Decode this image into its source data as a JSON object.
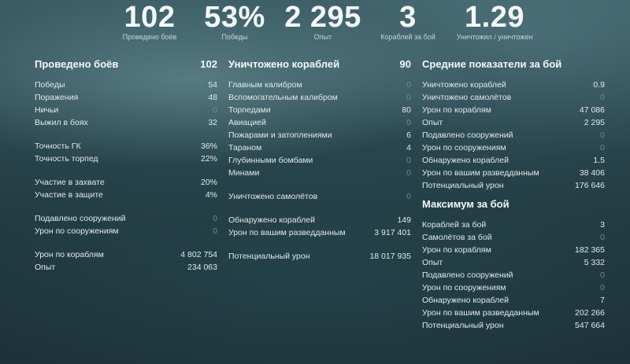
{
  "top": [
    {
      "value": "102",
      "label": "Проведено боёв"
    },
    {
      "value": "53%",
      "label": "Победы"
    },
    {
      "value": "2 295",
      "label": "Опыт"
    },
    {
      "value": "3",
      "label": "Кораблей за бой"
    },
    {
      "value": "1.29",
      "label": "Уничтожил / уничтожен"
    }
  ],
  "col1": {
    "title": "Проведено боёв",
    "total": "102",
    "g1": [
      {
        "label": "Победы",
        "value": "54"
      },
      {
        "label": "Поражения",
        "value": "48"
      },
      {
        "label": "Ничьи",
        "value": "0"
      },
      {
        "label": "Выжил в боях",
        "value": "32"
      }
    ],
    "g2": [
      {
        "label": "Точность ГК",
        "value": "36%"
      },
      {
        "label": "Точность торпед",
        "value": "22%"
      }
    ],
    "g3": [
      {
        "label": "Участие в захвате",
        "value": "20%"
      },
      {
        "label": "Участие в защите",
        "value": "4%"
      }
    ],
    "g4": [
      {
        "label": "Подавлено сооружений",
        "value": "0"
      },
      {
        "label": "Урон по сооружениям",
        "value": "0"
      }
    ],
    "g5": [
      {
        "label": "Урон по кораблям",
        "value": "4 802 754"
      },
      {
        "label": "Опыт",
        "value": "234 063"
      }
    ]
  },
  "col2": {
    "title": "Уничтожено кораблей",
    "total": "90",
    "g1": [
      {
        "label": "Главным калибром",
        "value": "0"
      },
      {
        "label": "Вспомогательным калибром",
        "value": "0"
      },
      {
        "label": "Торпедами",
        "value": "80"
      },
      {
        "label": "Авиацией",
        "value": "0"
      },
      {
        "label": "Пожарами и затоплениями",
        "value": "6"
      },
      {
        "label": "Тараном",
        "value": "4"
      },
      {
        "label": "Глубинными бомбами",
        "value": "0"
      },
      {
        "label": "Минами",
        "value": "0"
      }
    ],
    "g2": [
      {
        "label": "Уничтожено самолётов",
        "value": "0"
      }
    ],
    "g3": [
      {
        "label": "Обнаружено кораблей",
        "value": "149"
      },
      {
        "label": "Урон по вашим разведданным",
        "value": "3 917 401"
      }
    ],
    "g4": [
      {
        "label": "Потенциальный урон",
        "value": "18 017 935"
      }
    ]
  },
  "col3": {
    "avg_title": "Средние показатели за бой",
    "avg": [
      {
        "label": "Уничтожено кораблей",
        "value": "0.9"
      },
      {
        "label": "Уничтожено самолётов",
        "value": "0"
      },
      {
        "label": "Урон по кораблям",
        "value": "47 086"
      },
      {
        "label": "Опыт",
        "value": "2 295"
      },
      {
        "label": "Подавлено сооружений",
        "value": "0"
      },
      {
        "label": "Урон по сооружениям",
        "value": "0"
      },
      {
        "label": "Обнаружено кораблей",
        "value": "1.5"
      },
      {
        "label": "Урон по вашим разведданным",
        "value": "38 406"
      },
      {
        "label": "Потенциальный урон",
        "value": "176 646"
      }
    ],
    "max_title": "Максимум за бой",
    "max": [
      {
        "label": "Кораблей за бой",
        "value": "3"
      },
      {
        "label": "Самолётов за бой",
        "value": "0"
      },
      {
        "label": "Урон по кораблям",
        "value": "182 365"
      },
      {
        "label": "Опыт",
        "value": "5 332"
      },
      {
        "label": "Подавлено сооружений",
        "value": "0"
      },
      {
        "label": "Урон по сооружениям",
        "value": "0"
      },
      {
        "label": "Обнаружено кораблей",
        "value": "7"
      },
      {
        "label": "Урон по вашим разведданным",
        "value": "202 266"
      },
      {
        "label": "Потенциальный урон",
        "value": "547 664"
      }
    ]
  }
}
